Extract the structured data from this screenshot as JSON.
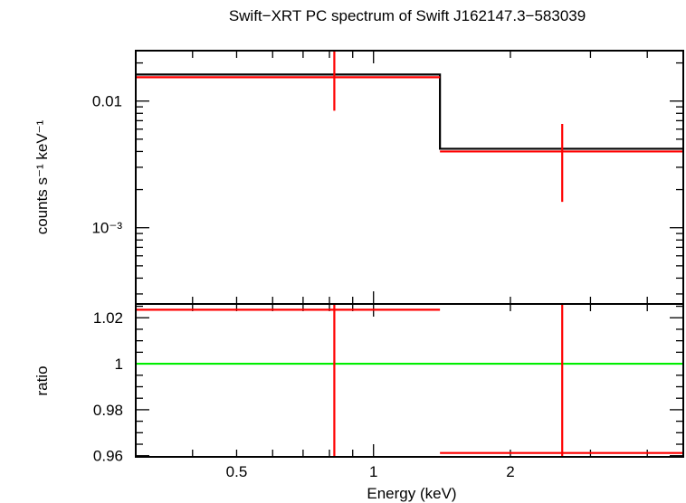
{
  "chart_data": {
    "title": "Swift−XRT PC spectrum of Swift J162147.3−583039",
    "xlabel": "Energy (keV)",
    "x_scale": "log",
    "xlim": [
      0.3,
      4.8
    ],
    "x_tick_labels": [
      {
        "value": 0.5,
        "label": "0.5"
      },
      {
        "value": 1,
        "label": "1"
      },
      {
        "value": 2,
        "label": "2"
      }
    ],
    "panels": [
      {
        "name": "spectrum",
        "type": "step-with-errorbars",
        "ylabel": "counts s⁻¹ keV⁻¹",
        "y_scale": "log",
        "ylim": [
          0.00025,
          0.025
        ],
        "y_tick_labels": [
          {
            "value": 0.01,
            "label": "0.01"
          },
          {
            "value": 0.001,
            "label": "10⁻³"
          }
        ],
        "model": {
          "name": "model",
          "color": "#000000",
          "bins": [
            {
              "x_lo": 0.3,
              "x_hi": 1.4,
              "y": 0.0162
            },
            {
              "x_lo": 1.4,
              "x_hi": 4.8,
              "y": 0.0042
            }
          ]
        },
        "data": {
          "name": "data",
          "color": "#ff0000",
          "points": [
            {
              "x": 0.82,
              "x_lo": 0.3,
              "x_hi": 1.4,
              "y": 0.0158,
              "y_lo": 0.0084,
              "y_hi": 0.025
            },
            {
              "x": 2.6,
              "x_lo": 1.4,
              "x_hi": 4.8,
              "y": 0.0041,
              "y_lo": 0.0016,
              "y_hi": 0.0066
            }
          ]
        }
      },
      {
        "name": "ratio",
        "type": "errorbars",
        "ylabel": "ratio",
        "y_scale": "linear",
        "ylim": [
          0.9595,
          1.026
        ],
        "y_tick_labels": [
          {
            "value": 0.96,
            "label": "0.96"
          },
          {
            "value": 0.98,
            "label": "0.98"
          },
          {
            "value": 1,
            "label": "1"
          },
          {
            "value": 1.02,
            "label": "1.02"
          }
        ],
        "reference_line": {
          "y": 1,
          "color": "#00ee00"
        },
        "data": {
          "name": "ratio",
          "color": "#ff0000",
          "points": [
            {
              "x": 0.82,
              "x_lo": 0.3,
              "x_hi": 1.4,
              "y": 1.0235,
              "y_lo": 0.9595,
              "y_hi": 1.026
            },
            {
              "x": 2.6,
              "x_lo": 1.4,
              "x_hi": 4.8,
              "y": 0.9612,
              "y_lo": 0.9595,
              "y_hi": 1.026
            }
          ]
        }
      }
    ]
  }
}
